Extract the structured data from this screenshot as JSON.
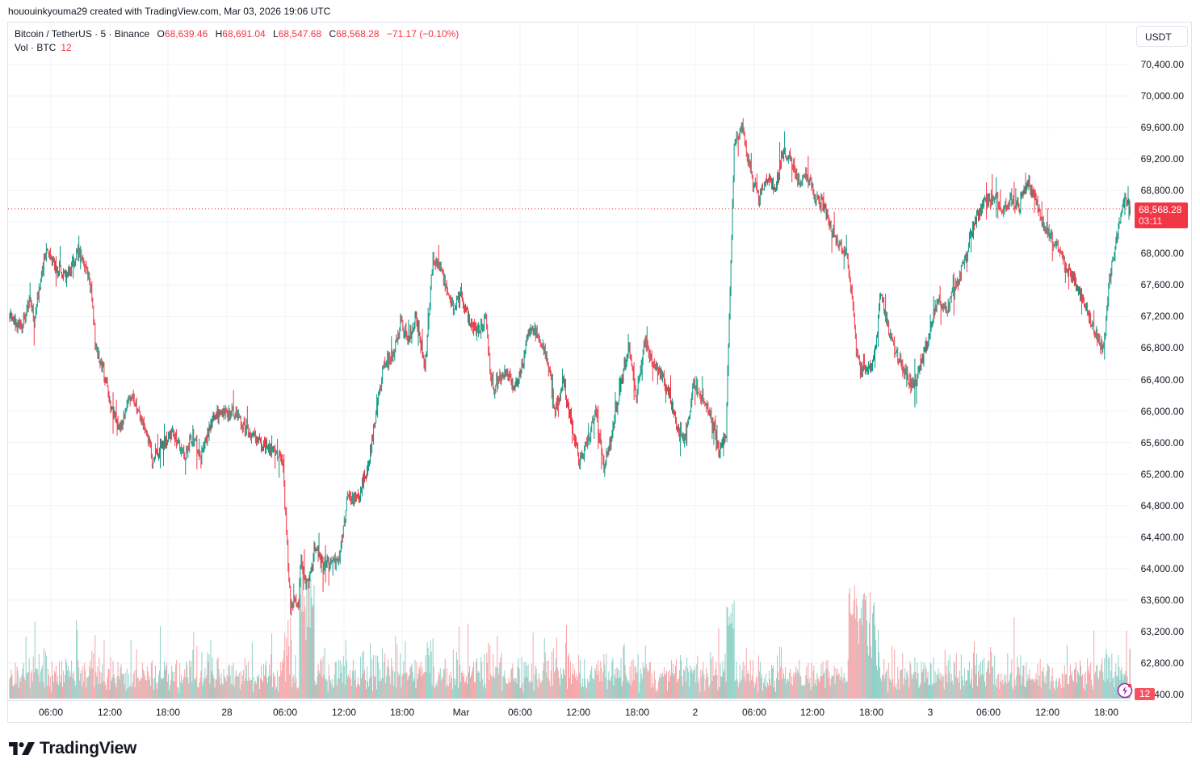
{
  "credit": "hououinkyouma29 created with TradingView.com, Mar 03, 2026 19:06 UTC",
  "legend": {
    "symbol": "Bitcoin / TetherUS · 5 · Binance",
    "open_label": "O",
    "open": "68,639.46",
    "high_label": "H",
    "high": "68,691.04",
    "low_label": "L",
    "low": "68,547.68",
    "close_label": "C",
    "close": "68,568.28",
    "change": "−71.17 (−0.10%)",
    "vol_label": "Vol · BTC",
    "vol_value": "12"
  },
  "price_axis": {
    "unit_button": "USDT",
    "labels": [
      "70,400.00",
      "70,000.00",
      "69,600.00",
      "69,200.00",
      "68,800.00",
      "68,000.00",
      "67,600.00",
      "67,200.00",
      "66,800.00",
      "66,400.00",
      "66,000.00",
      "65,600.00",
      "65,200.00",
      "64,800.00",
      "64,400.00",
      "64,000.00",
      "63,600.00",
      "63,200.00",
      "62,800.00",
      "62,400.00"
    ],
    "current_price": "68,568.28",
    "countdown": "03:11",
    "volume_tag": "12"
  },
  "time_axis": {
    "labels": [
      "06:00",
      "12:00",
      "18:00",
      "28",
      "06:00",
      "12:00",
      "18:00",
      "Mar",
      "06:00",
      "12:00",
      "18:00",
      "2",
      "06:00",
      "12:00",
      "18:00",
      "3",
      "06:00",
      "12:00",
      "18:00"
    ]
  },
  "colors": {
    "up": "#089981",
    "down": "#f23645",
    "vol_up": "#8fd1c7",
    "vol_down": "#f7a5a8",
    "grid": "#f0f3fa",
    "price_line": "#f23645"
  },
  "brand": {
    "name": "TradingView"
  },
  "chart_data": {
    "type": "candlestick",
    "title": "Bitcoin / TetherUS · 5 · Binance",
    "xlabel": "",
    "ylabel": "USDT",
    "ylim": [
      62300,
      70700
    ],
    "interval": "5m",
    "grid": true,
    "x_ticks": [
      "06:00",
      "12:00",
      "18:00",
      "28",
      "06:00",
      "12:00",
      "18:00",
      "Mar",
      "06:00",
      "12:00",
      "18:00",
      "2",
      "06:00",
      "12:00",
      "18:00",
      "3",
      "06:00",
      "12:00",
      "18:00"
    ],
    "y_ticks": [
      62400,
      62800,
      63200,
      63600,
      64000,
      64400,
      64800,
      65200,
      65600,
      66000,
      66400,
      66800,
      67200,
      67600,
      68000,
      68400,
      68800,
      69200,
      69600,
      70000,
      70400
    ],
    "last": {
      "open": 68639.46,
      "high": 68691.04,
      "low": 68547.68,
      "close": 68568.28,
      "change": -71.17,
      "change_pct": -0.1,
      "volume": 12
    },
    "price_path": {
      "note": "approximate close waypoints; bar index = 5-min bars from chart left edge",
      "bars": [
        0,
        15,
        25,
        30,
        40,
        45,
        55,
        70,
        85,
        100,
        105,
        115,
        125,
        135,
        150,
        165,
        175,
        185,
        200,
        215,
        225,
        235,
        250,
        265,
        275,
        285,
        300,
        320,
        335,
        345,
        355,
        358,
        362,
        368,
        375,
        385,
        395,
        405,
        415,
        425,
        440,
        450,
        460,
        470,
        480,
        490,
        500,
        510,
        520,
        530,
        545,
        555,
        565,
        575,
        585,
        590,
        595,
        600,
        610,
        620,
        630,
        640,
        650,
        660,
        670,
        680,
        690,
        700,
        710,
        720,
        730,
        740,
        750,
        760,
        770,
        780,
        790,
        800,
        810,
        820,
        830,
        840,
        850,
        860,
        870,
        880,
        890,
        900,
        910,
        920,
        930,
        940,
        950,
        960,
        970,
        980,
        990,
        1000,
        1010,
        1020,
        1030,
        1035,
        1040,
        1045,
        1050,
        1055,
        1060,
        1065,
        1070,
        1080,
        1090,
        1100,
        1110,
        1120,
        1130,
        1140,
        1150,
        1160,
        1170,
        1180,
        1190,
        1200,
        1210,
        1220,
        1230,
        1240,
        1250,
        1260,
        1265,
        1270,
        1280,
        1290,
        1300,
        1310,
        1320,
        1330,
        1340,
        1345,
        1350,
        1355,
        1360,
        1365,
        1370,
        1375,
        1380
      ],
      "close": [
        67200,
        67050,
        67450,
        67150,
        67800,
        68050,
        67850,
        67700,
        68050,
        67550,
        66900,
        66500,
        66000,
        65800,
        66200,
        65850,
        65400,
        65550,
        65700,
        65450,
        65700,
        65400,
        65950,
        65950,
        66000,
        65850,
        65650,
        65500,
        65400,
        63500,
        63600,
        64100,
        63900,
        63800,
        64300,
        64000,
        64100,
        64100,
        64900,
        64850,
        65250,
        66000,
        66600,
        66700,
        67100,
        66900,
        67200,
        66500,
        67950,
        67800,
        67300,
        67500,
        67100,
        67000,
        67200,
        66500,
        66300,
        66400,
        66500,
        66300,
        66600,
        67100,
        66900,
        66700,
        66000,
        66400,
        65800,
        65350,
        65600,
        66000,
        65300,
        65700,
        66300,
        66800,
        66200,
        66900,
        66600,
        66500,
        66200,
        65800,
        65600,
        66400,
        66200,
        66000,
        65500,
        65700,
        69400,
        69600,
        69000,
        68700,
        69000,
        68800,
        69300,
        69200,
        68900,
        69000,
        68700,
        68600,
        68300,
        68100,
        67900,
        67400,
        66800,
        66500,
        66600,
        66500,
        66600,
        66900,
        67500,
        67000,
        66700,
        66500,
        66300,
        66600,
        67000,
        67400,
        67300,
        67500,
        67800,
        68200,
        68500,
        68700,
        68700,
        68550,
        68700,
        68600,
        68900,
        68700,
        68550,
        68400,
        68200,
        68000,
        67800,
        67600,
        67400,
        67100,
        66800,
        66900,
        67600,
        67900,
        68200,
        68500,
        68700,
        68600,
        68568
      ]
    }
  }
}
